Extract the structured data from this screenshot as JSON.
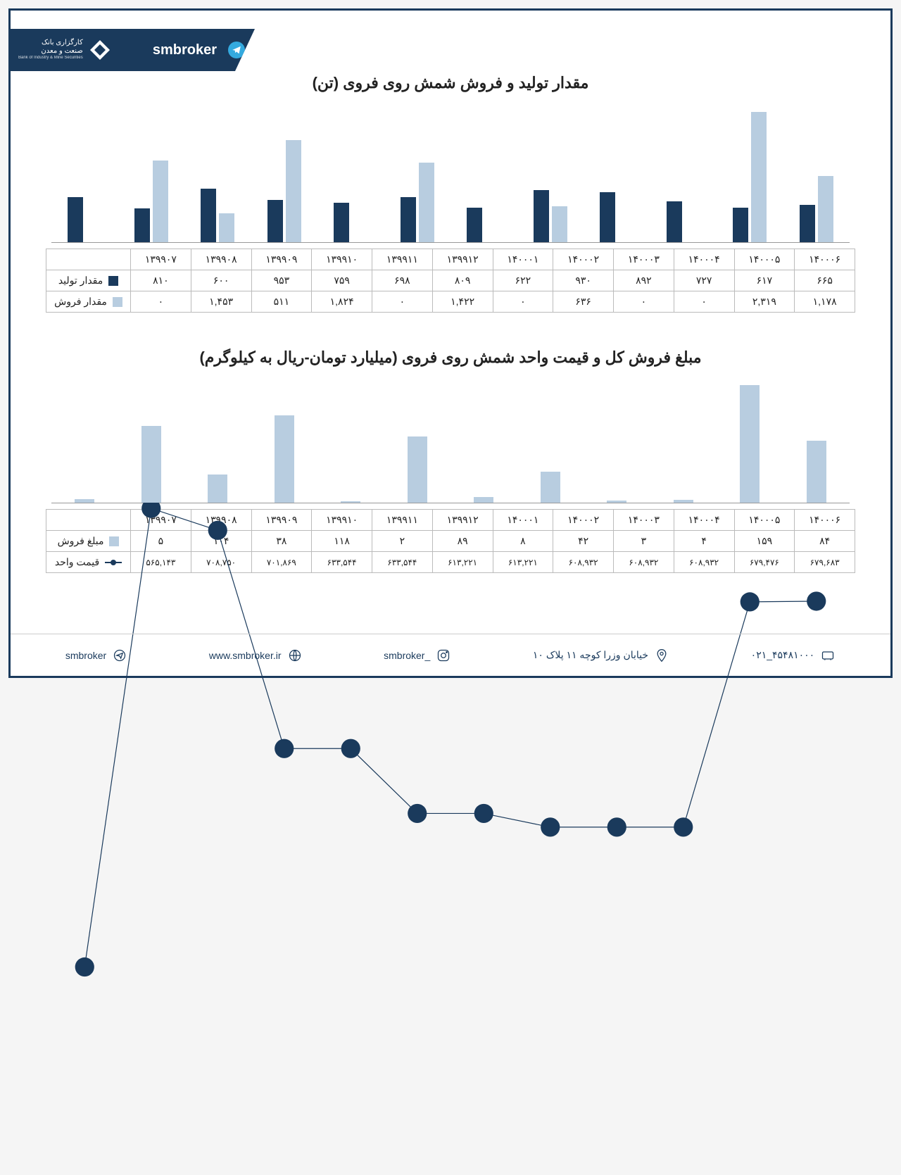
{
  "header": {
    "logo_top": "کارگزاری بانک",
    "logo_bottom": "صنعت و معدن",
    "logo_sub": "Bank of Industry & Mine Securities",
    "broker": "smbroker"
  },
  "chart1": {
    "type": "grouped-bar",
    "title": "مقدار تولید و فروش شمش روی فروی (تن)",
    "categories": [
      "۱۳۹۹۰۷",
      "۱۳۹۹۰۸",
      "۱۳۹۹۰۹",
      "۱۳۹۹۱۰",
      "۱۳۹۹۱۱",
      "۱۳۹۹۱۲",
      "۱۴۰۰۰۱",
      "۱۴۰۰۰۲",
      "۱۴۰۰۰۳",
      "۱۴۰۰۰۴",
      "۱۴۰۰۰۵",
      "۱۴۰۰۰۶"
    ],
    "series": [
      {
        "label": "مقدار تولید",
        "color": "#1a3a5c",
        "values": [
          810,
          600,
          953,
          759,
          698,
          809,
          622,
          930,
          892,
          727,
          617,
          665
        ],
        "display": [
          "۸۱۰",
          "۶۰۰",
          "۹۵۳",
          "۷۵۹",
          "۶۹۸",
          "۸۰۹",
          "۶۲۲",
          "۹۳۰",
          "۸۹۲",
          "۷۲۷",
          "۶۱۷",
          "۶۶۵"
        ]
      },
      {
        "label": "مقدار فروش",
        "color": "#b8cde0",
        "values": [
          0,
          1453,
          511,
          1824,
          0,
          1422,
          0,
          636,
          0,
          0,
          2319,
          1178
        ],
        "display": [
          "۰",
          "۱,۴۵۳",
          "۵۱۱",
          "۱,۸۲۴",
          "۰",
          "۱,۴۲۲",
          "۰",
          "۶۳۶",
          "۰",
          "۰",
          "۲,۳۱۹",
          "۱,۱۷۸"
        ]
      }
    ],
    "y_max": 2500,
    "background": "#ffffff"
  },
  "chart2": {
    "type": "bar-line-combo",
    "title": "مبلغ فروش کل و قیمت واحد شمش روی فروی (میلیارد تومان-ریال به کیلوگرم)",
    "categories": [
      "۱۳۹۹۰۷",
      "۱۳۹۹۰۸",
      "۱۳۹۹۰۹",
      "۱۳۹۹۱۰",
      "۱۳۹۹۱۱",
      "۱۳۹۹۱۲",
      "۱۴۰۰۰۱",
      "۱۴۰۰۰۲",
      "۱۴۰۰۰۳",
      "۱۴۰۰۰۴",
      "۱۴۰۰۰۵",
      "۱۴۰۰۰۶"
    ],
    "bars": {
      "label": "مبلغ فروش",
      "color": "#b8cde0",
      "values": [
        5,
        104,
        38,
        118,
        2,
        89,
        8,
        42,
        3,
        4,
        159,
        84
      ],
      "display": [
        "۵",
        "۱۰۴",
        "۳۸",
        "۱۱۸",
        "۲",
        "۸۹",
        "۸",
        "۴۲",
        "۳",
        "۴",
        "۱۵۹",
        "۸۴"
      ],
      "y_max": 170
    },
    "line": {
      "label": "قیمت واحد",
      "color": "#1a3a5c",
      "values": [
        565143,
        708750,
        701869,
        633544,
        633544,
        613221,
        613221,
        608932,
        608932,
        608932,
        679476,
        679683
      ],
      "display": [
        "۵۶۵,۱۴۳",
        "۷۰۸,۷۵۰",
        "۷۰۱,۸۶۹",
        "۶۳۳,۵۴۴",
        "۶۳۳,۵۴۴",
        "۶۱۳,۲۲۱",
        "۶۱۳,۲۲۱",
        "۶۰۸,۹۳۲",
        "۶۰۸,۹۳۲",
        "۶۰۸,۹۳۲",
        "۶۷۹,۴۷۶",
        "۶۷۹,۶۸۳"
      ],
      "y_min": 500000,
      "y_max": 750000
    },
    "background": "#ffffff"
  },
  "footer": {
    "telegram": "smbroker",
    "website": "www.smbroker.ir",
    "instagram": "smbroker_",
    "address": "خیابان وزرا کوچه ۱۱ پلاک ۱۰",
    "phone": "۰۲۱_۴۵۴۸۱۰۰۰"
  },
  "colors": {
    "dark": "#1a3a5c",
    "light": "#b8cde0",
    "border": "#bbbbbb",
    "text": "#222222"
  }
}
